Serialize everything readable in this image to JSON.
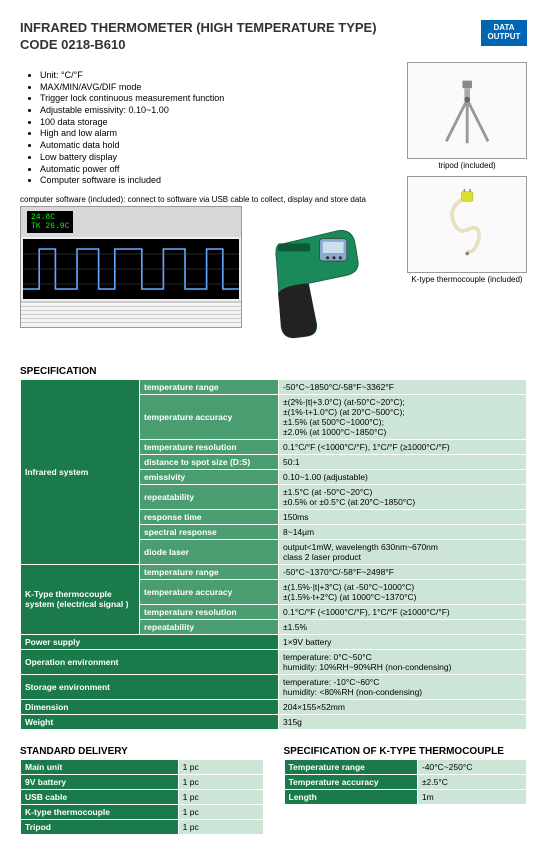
{
  "title": "INFRARED THERMOMETER (HIGH TEMPERATURE TYPE)",
  "code": "CODE 0218-B610",
  "badge": {
    "line1": "DATA",
    "line2": "OUTPUT"
  },
  "features": [
    "Unit: °C/°F",
    "MAX/MIN/AVG/DIF mode",
    "Trigger lock continuous measurement function",
    "Adjustable emissivity: 0.10~1.00",
    "100 data storage",
    "High and low alarm",
    "Automatic data hold",
    "Low battery display",
    "Automatic power off",
    "Computer software is included"
  ],
  "software_caption": "computer software (included): connect to software via USB cable to collect, display and store data",
  "software_reading": {
    "line1": "    24.8C",
    "line2": "TK   26.9C"
  },
  "tripod_caption": "tripod (included)",
  "thermocouple_caption": "K-type thermocouple (included)",
  "spec_header": "SPECIFICATION",
  "spec": {
    "infrared_label": "Infrared system",
    "infrared_rows": [
      {
        "label": "temperature range",
        "value": "-50°C~1850°C/-58°F~3362°F"
      },
      {
        "label": "temperature accuracy",
        "value": "±(2%·|t|+3.0°C) (at-50°C~20°C);\n±(1%·t+1.0°C) (at 20°C~500°C);\n±1.5% (at 500°C~1000°C);\n±2.0% (at 1000°C~1850°C)"
      },
      {
        "label": "temperature resolution",
        "value": "0.1°C/°F (<1000°C/°F), 1°C/°F (≥1000°C/°F)"
      },
      {
        "label": "distance to spot size (D:S)",
        "value": "50:1"
      },
      {
        "label": "emissivity",
        "value": "0.10~1.00 (adjustable)"
      },
      {
        "label": "repeatability",
        "value": "±1.5°C (at -50°C~20°C)\n±0.5% or ±0.5°C (at 20°C~1850°C)"
      },
      {
        "label": "response time",
        "value": "150ms"
      },
      {
        "label": "spectral response",
        "value": "8~14μm"
      },
      {
        "label": "diode laser",
        "value": "output<1mW, wavelength 630nm~670nm\nclass 2 laser product"
      }
    ],
    "ktype_label": "K-Type thermocouple system (electrical signal )",
    "ktype_rows": [
      {
        "label": "temperature range",
        "value": "-50°C~1370°C/-58°F~2498°F"
      },
      {
        "label": "temperature accuracy",
        "value": "±(1.5%·|t|+3°C) (at -50°C~1000°C)\n±(1.5%·t+2°C) (at 1000°C~1370°C)"
      },
      {
        "label": "temperature resolution",
        "value": "0.1°C/°F (<1000°C/°F), 1°C/°F (≥1000°C/°F)"
      },
      {
        "label": "repeatability",
        "value": "±1.5%"
      }
    ],
    "single_rows": [
      {
        "label": "Power supply",
        "value": "1×9V battery"
      },
      {
        "label": "Operation environment",
        "value": "temperature: 0°C~50°C\nhumidity: 10%RH~90%RH (non-condensing)"
      },
      {
        "label": "Storage environment",
        "value": "temperature: -10°C~60°C\nhumidity: <80%RH (non-condensing)"
      },
      {
        "label": "Dimension",
        "value": "204×155×52mm"
      },
      {
        "label": "Weight",
        "value": "315g"
      }
    ]
  },
  "delivery_header": "STANDARD DELIVERY",
  "delivery": [
    {
      "item": "Main unit",
      "qty": "1 pc"
    },
    {
      "item": "9V battery",
      "qty": "1 pc"
    },
    {
      "item": "USB cable",
      "qty": "1 pc"
    },
    {
      "item": "K-type thermocouple",
      "qty": "1 pc"
    },
    {
      "item": "Tripod",
      "qty": "1 pc"
    }
  ],
  "ktype_spec_header": "SPECIFICATION OF K-TYPE THERMOCOUPLE",
  "ktype_spec": [
    {
      "label": "Temperature range",
      "value": "-40°C~250°C"
    },
    {
      "label": "Temperature accuracy",
      "value": "±2.5°C"
    },
    {
      "label": "Length",
      "value": "1m"
    }
  ],
  "colors": {
    "dark": "#1a7a4a",
    "mid": "#4a9d6f",
    "light": "#cde5d6",
    "badge": "#0066b3"
  }
}
